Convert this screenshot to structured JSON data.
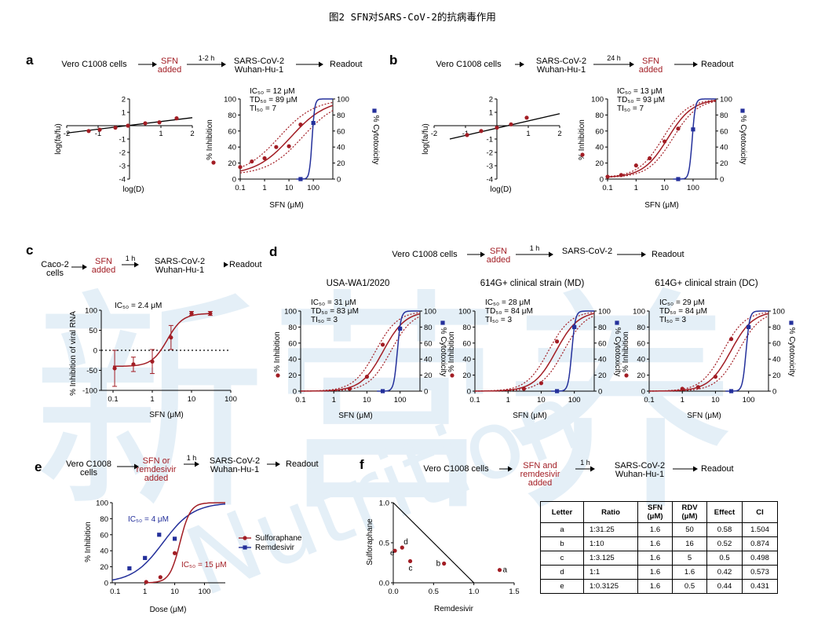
{
  "title": "图2 SFN对SARS-CoV-2的抗病毒作用",
  "watermark": "新营养 Nutrition",
  "colors": {
    "sfn": "#a21d24",
    "rdv": "#24309b",
    "axis": "#000000",
    "table_border": "#000000"
  },
  "panel_a": {
    "letter": "a",
    "scheme": [
      "Vero C1008 cells",
      "SFN\nadded",
      "1-2 h",
      "SARS-CoV-2\nWuhan-Hu-1",
      "Readout"
    ],
    "median_plot": {
      "xlabel": "log(D)",
      "ylabel": "log(fa/fu)",
      "xticks": [
        "-2",
        "-1",
        "1",
        "2"
      ],
      "yticks": [
        "2",
        "1",
        "-1",
        "-2",
        "-3",
        "-4"
      ]
    },
    "dose_plot": {
      "annotation": [
        "IC₅₀ = 12 μM",
        "TD₅₀ = 89 μM",
        "TI₅₀ = 7"
      ],
      "xlabel": "SFN (μM)",
      "ylabel_left": "% Inhibition",
      "ylabel_right": "% Cytotoxicity"
    }
  },
  "panel_b": {
    "letter": "b",
    "scheme": [
      "Vero C1008 cells",
      "SARS-CoV-2\nWuhan-Hu-1",
      "24 h",
      "SFN\nadded",
      "Readout"
    ],
    "median_plot": {
      "xlabel": "log(D)",
      "ylabel": "log(fa/fu)",
      "xticks": [
        "-2",
        "-1",
        "1",
        "2"
      ],
      "yticks": [
        "2",
        "1",
        "-1",
        "-2",
        "-3",
        "-4"
      ]
    },
    "dose_plot": {
      "annotation": [
        "IC₅₀ = 13 μM",
        "TD₅₀ = 93 μM",
        "TI₅₀ = 7"
      ],
      "xlabel": "SFN (μM)",
      "ylabel_left": "% Inhibition",
      "ylabel_right": "% Cytotoxicity"
    }
  },
  "panel_c": {
    "letter": "c",
    "scheme": [
      "Caco-2\ncells",
      "SFN\nadded",
      "1 h",
      "SARS-CoV-2\nWuhan-Hu-1",
      "Readout"
    ],
    "plot": {
      "annotation": [
        "IC₅₀ = 2.4 μM"
      ],
      "xlabel": "SFN (μM)",
      "ylabel": "% Inhibition of viral RNA"
    }
  },
  "panel_d": {
    "letter": "d",
    "scheme": [
      "Vero C1008 cells",
      "SFN\nadded",
      "1 h",
      "SARS-CoV-2",
      "Readout"
    ],
    "plots": [
      {
        "title": "USA-WA1/2020",
        "annotation": [
          "IC₅₀ = 31 μM",
          "TD₅₀ = 83 μM",
          "TI₅₀ = 3"
        ]
      },
      {
        "title": "614G+ clinical strain (MD)",
        "annotation": [
          "IC₅₀ = 28 μM",
          "TD₅₀ = 84 μM",
          "TI₅₀ = 3"
        ]
      },
      {
        "title": "614G+ clinical strain (DC)",
        "annotation": [
          "IC₅₀ = 29 μM",
          "TD₅₀ = 84 μM",
          "TI₅₀ = 3"
        ]
      }
    ],
    "xlabel": "SFN (μM)",
    "ylabel_left": "% Inhibition",
    "ylabel_right": "% Cytotoxicity"
  },
  "panel_e": {
    "letter": "e",
    "scheme": [
      "Vero C1008\ncells",
      "SFN or\nremdesivir\nadded",
      "1 h",
      "SARS-CoV-2\nWuhan-Hu-1",
      "Readout"
    ],
    "plot": {
      "ic_rdv": "IC₅₀ = 4 μM",
      "ic_sfn": "IC₅₀ = 15 μM",
      "xlabel": "Dose (μM)",
      "ylabel": "% Inhibition",
      "legend": [
        "Sulforaphane",
        "Remdesivir"
      ]
    }
  },
  "panel_f": {
    "letter": "f",
    "scheme": [
      "Vero C1008 cells",
      "SFN and\nremdesivir\nadded",
      "1 h",
      "SARS-CoV-2\nWuhan-Hu-1",
      "Readout"
    ],
    "plot": {
      "xlabel": "Remdesivir",
      "ylabel": "Sulforaphane",
      "xticks": [
        "0.0",
        "0.5",
        "1.0",
        "1.5"
      ],
      "yticks": [
        "1.0",
        "0.5",
        "0.0"
      ]
    },
    "table": {
      "headers": [
        "Letter",
        "Ratio",
        "SFN\n(μM)",
        "RDV\n(μM)",
        "Effect",
        "CI"
      ],
      "rows": [
        [
          "a",
          "1:31.25",
          "1.6",
          "50",
          "0.58",
          "1.504"
        ],
        [
          "b",
          "1:10",
          "1.6",
          "16",
          "0.52",
          "0.874"
        ],
        [
          "c",
          "1:3.125",
          "1.6",
          "5",
          "0.5",
          "0.498"
        ],
        [
          "d",
          "1:1",
          "1.6",
          "1.6",
          "0.42",
          "0.573"
        ],
        [
          "e",
          "1:0.3125",
          "1.6",
          "0.5",
          "0.44",
          "0.431"
        ]
      ]
    }
  },
  "chart_data": [
    {
      "type": "scatter",
      "id": "a-median",
      "x_points": [
        -1.3,
        -0.95,
        -0.45,
        -0.05,
        0.5,
        0.95,
        1.5
      ],
      "y_points": [
        -0.4,
        -0.3,
        -0.15,
        0.0,
        0.18,
        0.25,
        0.55
      ],
      "fit": [
        [
          -2,
          -0.55
        ],
        [
          2,
          0.6
        ]
      ],
      "xlim": [
        -2,
        2
      ],
      "ylim": [
        -4,
        2
      ]
    },
    {
      "type": "line",
      "id": "a-dose",
      "xscale": "log",
      "xticks": [
        "0.1",
        "1",
        "10",
        "100"
      ],
      "ylim": [
        0,
        100
      ],
      "inhibition": {
        "x": [
          0.1,
          0.3,
          1,
          3,
          10,
          30
        ],
        "y": [
          15,
          22,
          26,
          40,
          41,
          68
        ]
      },
      "cytotoxicity": {
        "x": [
          30,
          100
        ],
        "y": [
          0,
          70
        ]
      },
      "ic50": 12,
      "td50": 89
    },
    {
      "type": "scatter",
      "id": "b-median",
      "x_points": [
        -0.95,
        -0.5,
        0.0,
        0.45,
        0.95
      ],
      "y_points": [
        -0.7,
        -0.4,
        -0.15,
        0.1,
        0.6
      ],
      "fit": [
        [
          -1.5,
          -1.0
        ],
        [
          2,
          0.9
        ]
      ],
      "xlim": [
        -2,
        2
      ],
      "ylim": [
        -4,
        2
      ]
    },
    {
      "type": "line",
      "id": "b-dose",
      "xscale": "log",
      "xticks": [
        "0.1",
        "1",
        "10",
        "100"
      ],
      "ylim": [
        0,
        100
      ],
      "inhibition": {
        "x": [
          0.1,
          0.3,
          1,
          3,
          10,
          30
        ],
        "y": [
          3,
          5,
          17,
          26,
          47,
          63
        ]
      },
      "cytotoxicity": {
        "x": [
          30,
          100
        ],
        "y": [
          0,
          62
        ]
      },
      "ic50": 13,
      "td50": 93
    },
    {
      "type": "line",
      "id": "c",
      "xscale": "log",
      "xticks": [
        "0.1",
        "1",
        "10",
        "100"
      ],
      "yticks": [
        "100",
        "50",
        "0",
        "-50",
        "-100"
      ],
      "ylim": [
        -100,
        100
      ],
      "x": [
        0.11,
        0.33,
        1,
        3,
        10,
        30
      ],
      "y": [
        -45,
        -35,
        -28,
        32,
        92,
        92
      ],
      "err": [
        45,
        18,
        30,
        30,
        5,
        5
      ],
      "ic50": 2.4
    },
    {
      "type": "line",
      "id": "d-usa",
      "xscale": "log",
      "ylim": [
        0,
        100
      ],
      "inhibition": {
        "x": [
          3,
          10,
          30,
          100
        ],
        "y": [
          3,
          18,
          58,
          78
        ]
      },
      "cytotoxicity": {
        "x": [
          30,
          100
        ],
        "y": [
          0,
          78
        ]
      },
      "ic50": 31,
      "td50": 83
    },
    {
      "type": "line",
      "id": "d-md",
      "xscale": "log",
      "ylim": [
        0,
        100
      ],
      "inhibition": {
        "x": [
          3,
          10,
          30,
          100
        ],
        "y": [
          3,
          10,
          62,
          80
        ]
      },
      "cytotoxicity": {
        "x": [
          30,
          100
        ],
        "y": [
          0,
          80
        ]
      },
      "ic50": 28,
      "td50": 84
    },
    {
      "type": "line",
      "id": "d-dc",
      "xscale": "log",
      "ylim": [
        0,
        100
      ],
      "inhibition": {
        "x": [
          1,
          3,
          10,
          30,
          100
        ],
        "y": [
          3,
          5,
          18,
          65,
          80
        ]
      },
      "cytotoxicity": {
        "x": [
          30,
          100
        ],
        "y": [
          0,
          80
        ]
      },
      "ic50": 29,
      "td50": 84
    },
    {
      "type": "line",
      "id": "e",
      "xscale": "log",
      "ylim": [
        0,
        100
      ],
      "xticks": [
        "0.1",
        "1",
        "10",
        "100"
      ],
      "series": [
        {
          "name": "Sulforaphane",
          "x": [
            1.1,
            3.3,
            10
          ],
          "y": [
            1,
            7,
            37
          ]
        },
        {
          "name": "Remdesivir",
          "x": [
            0.3,
            1,
            3,
            10
          ],
          "y": [
            18,
            31,
            60,
            55
          ]
        }
      ],
      "ic50_sfn": 15,
      "ic50_rdv": 4
    },
    {
      "type": "scatter",
      "id": "f-isobologram",
      "xlim": [
        0,
        1.5
      ],
      "ylim": [
        0,
        1
      ],
      "points": [
        {
          "label": "a",
          "x": 1.32,
          "y": 0.16
        },
        {
          "label": "b",
          "x": 0.63,
          "y": 0.24
        },
        {
          "label": "c",
          "x": 0.21,
          "y": 0.27
        },
        {
          "label": "d",
          "x": 0.11,
          "y": 0.44
        },
        {
          "label": "e",
          "x": 0.02,
          "y": 0.4
        }
      ],
      "additivity_line": [
        [
          0,
          1
        ],
        [
          1,
          0
        ]
      ]
    }
  ]
}
